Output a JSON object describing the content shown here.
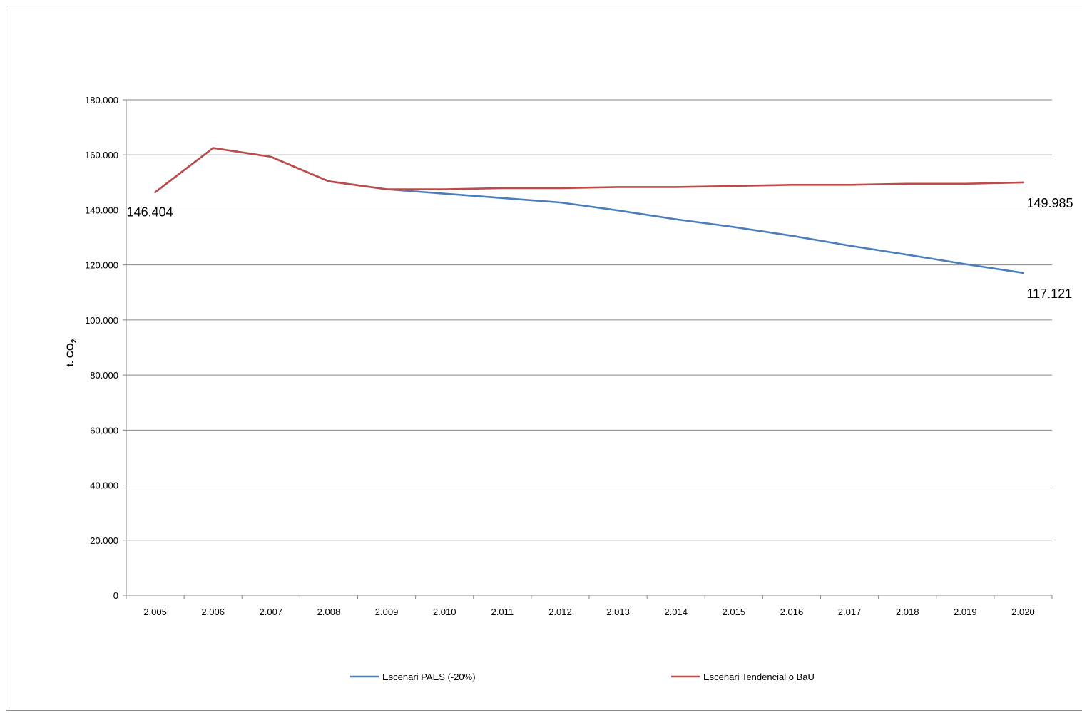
{
  "chart_data": {
    "type": "line",
    "categories": [
      "2.005",
      "2.006",
      "2.007",
      "2.008",
      "2.009",
      "2.010",
      "2.011",
      "2.012",
      "2.013",
      "2.014",
      "2.015",
      "2.016",
      "2.017",
      "2.018",
      "2.019",
      "2.020"
    ],
    "x": [
      2005,
      2006,
      2007,
      2008,
      2009,
      2010,
      2011,
      2012,
      2013,
      2014,
      2015,
      2016,
      2017,
      2018,
      2019,
      2020
    ],
    "ylabel": {
      "main": "t. CO",
      "sub": "2"
    },
    "ylim": [
      0,
      180000
    ],
    "yticks": [
      0,
      20000,
      40000,
      60000,
      80000,
      100000,
      120000,
      140000,
      160000,
      180000
    ],
    "ytick_labels": [
      "0",
      "20.000",
      "40.000",
      "60.000",
      "80.000",
      "100.000",
      "120.000",
      "140.000",
      "160.000",
      "180.000"
    ],
    "grid": true,
    "legend_position": "bottom",
    "series": [
      {
        "name": "Escenari PAES (-20%)",
        "color": "#4a7ebb",
        "values": [
          146404,
          162500,
          159300,
          150400,
          147500,
          145900,
          144300,
          142700,
          139800,
          136600,
          133800,
          130600,
          127000,
          123700,
          120300,
          117121
        ]
      },
      {
        "name": "Escenari Tendencial o BaU",
        "color": "#be4b48",
        "values": [
          146404,
          162500,
          159300,
          150400,
          147500,
          147500,
          147900,
          147900,
          148300,
          148300,
          148700,
          149100,
          149100,
          149500,
          149500,
          149985
        ]
      }
    ],
    "annotations": [
      {
        "text": "146.404",
        "series": 1,
        "point": 0
      },
      {
        "text": "149.985",
        "series": 1,
        "point": 15
      },
      {
        "text": "117.121",
        "series": 0,
        "point": 15
      }
    ]
  }
}
